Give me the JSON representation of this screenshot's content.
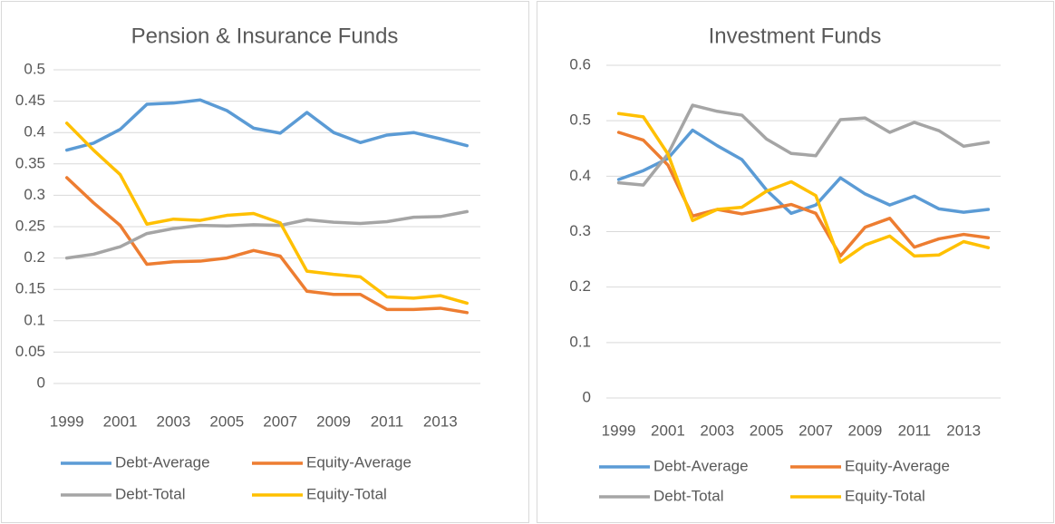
{
  "chart_data": [
    {
      "type": "line",
      "title": "Pension & Insurance Funds",
      "categories": [
        "1999",
        null,
        "2001",
        null,
        "2003",
        null,
        "2005",
        null,
        "2007",
        null,
        "2009",
        null,
        "2011",
        null,
        "2013",
        null
      ],
      "ylim": [
        0,
        0.5
      ],
      "yticks": [
        0,
        0.05,
        0.1,
        0.15,
        0.2,
        0.25,
        0.3,
        0.35,
        0.4,
        0.45,
        0.5
      ],
      "grid": true,
      "legend": "bottom",
      "series": [
        {
          "name": "Debt-Average",
          "color": "#5b9bd5",
          "values": [
            0.372,
            0.383,
            0.405,
            0.445,
            0.447,
            0.452,
            0.435,
            0.407,
            0.399,
            0.432,
            0.4,
            0.384,
            0.396,
            0.4,
            0.39,
            0.379
          ]
        },
        {
          "name": "Equity-Average",
          "color": "#ed7d31",
          "values": [
            0.328,
            0.288,
            0.252,
            0.19,
            0.194,
            0.195,
            0.2,
            0.212,
            0.203,
            0.147,
            0.142,
            0.142,
            0.118,
            0.118,
            0.12,
            0.113
          ]
        },
        {
          "name": "Debt-Total",
          "color": "#a5a5a5",
          "values": [
            0.2,
            0.206,
            0.218,
            0.239,
            0.247,
            0.252,
            0.251,
            0.253,
            0.252,
            0.261,
            0.257,
            0.255,
            0.258,
            0.265,
            0.266,
            0.274
          ]
        },
        {
          "name": "Equity-Total",
          "color": "#ffc000",
          "values": [
            0.415,
            0.372,
            0.333,
            0.254,
            0.262,
            0.26,
            0.268,
            0.271,
            0.256,
            0.179,
            0.174,
            0.17,
            0.138,
            0.136,
            0.14,
            0.128
          ]
        }
      ]
    },
    {
      "type": "line",
      "title": "Investment Funds",
      "categories": [
        "1999",
        null,
        "2001",
        null,
        "2003",
        null,
        "2005",
        null,
        "2007",
        null,
        "2009",
        null,
        "2011",
        null,
        "2013",
        null
      ],
      "ylim": [
        0,
        0.6
      ],
      "yticks": [
        0,
        0.1,
        0.2,
        0.3,
        0.4,
        0.5,
        0.6
      ],
      "grid": true,
      "legend": "bottom",
      "series": [
        {
          "name": "Debt-Average",
          "color": "#5b9bd5",
          "values": [
            0.394,
            0.41,
            0.432,
            0.483,
            0.455,
            0.43,
            0.375,
            0.333,
            0.348,
            0.397,
            0.368,
            0.348,
            0.364,
            0.341,
            0.335,
            0.34
          ]
        },
        {
          "name": "Equity-Average",
          "color": "#ed7d31",
          "values": [
            0.479,
            0.465,
            0.42,
            0.328,
            0.34,
            0.332,
            0.34,
            0.349,
            0.333,
            0.256,
            0.308,
            0.324,
            0.272,
            0.287,
            0.295,
            0.289
          ]
        },
        {
          "name": "Debt-Total",
          "color": "#a5a5a5",
          "values": [
            0.388,
            0.384,
            0.44,
            0.528,
            0.517,
            0.51,
            0.467,
            0.441,
            0.437,
            0.502,
            0.505,
            0.479,
            0.497,
            0.482,
            0.454,
            0.461
          ]
        },
        {
          "name": "Equity-Total",
          "color": "#ffc000",
          "values": [
            0.513,
            0.507,
            0.44,
            0.32,
            0.34,
            0.344,
            0.373,
            0.39,
            0.365,
            0.245,
            0.276,
            0.292,
            0.256,
            0.258,
            0.282,
            0.271
          ]
        }
      ]
    }
  ]
}
